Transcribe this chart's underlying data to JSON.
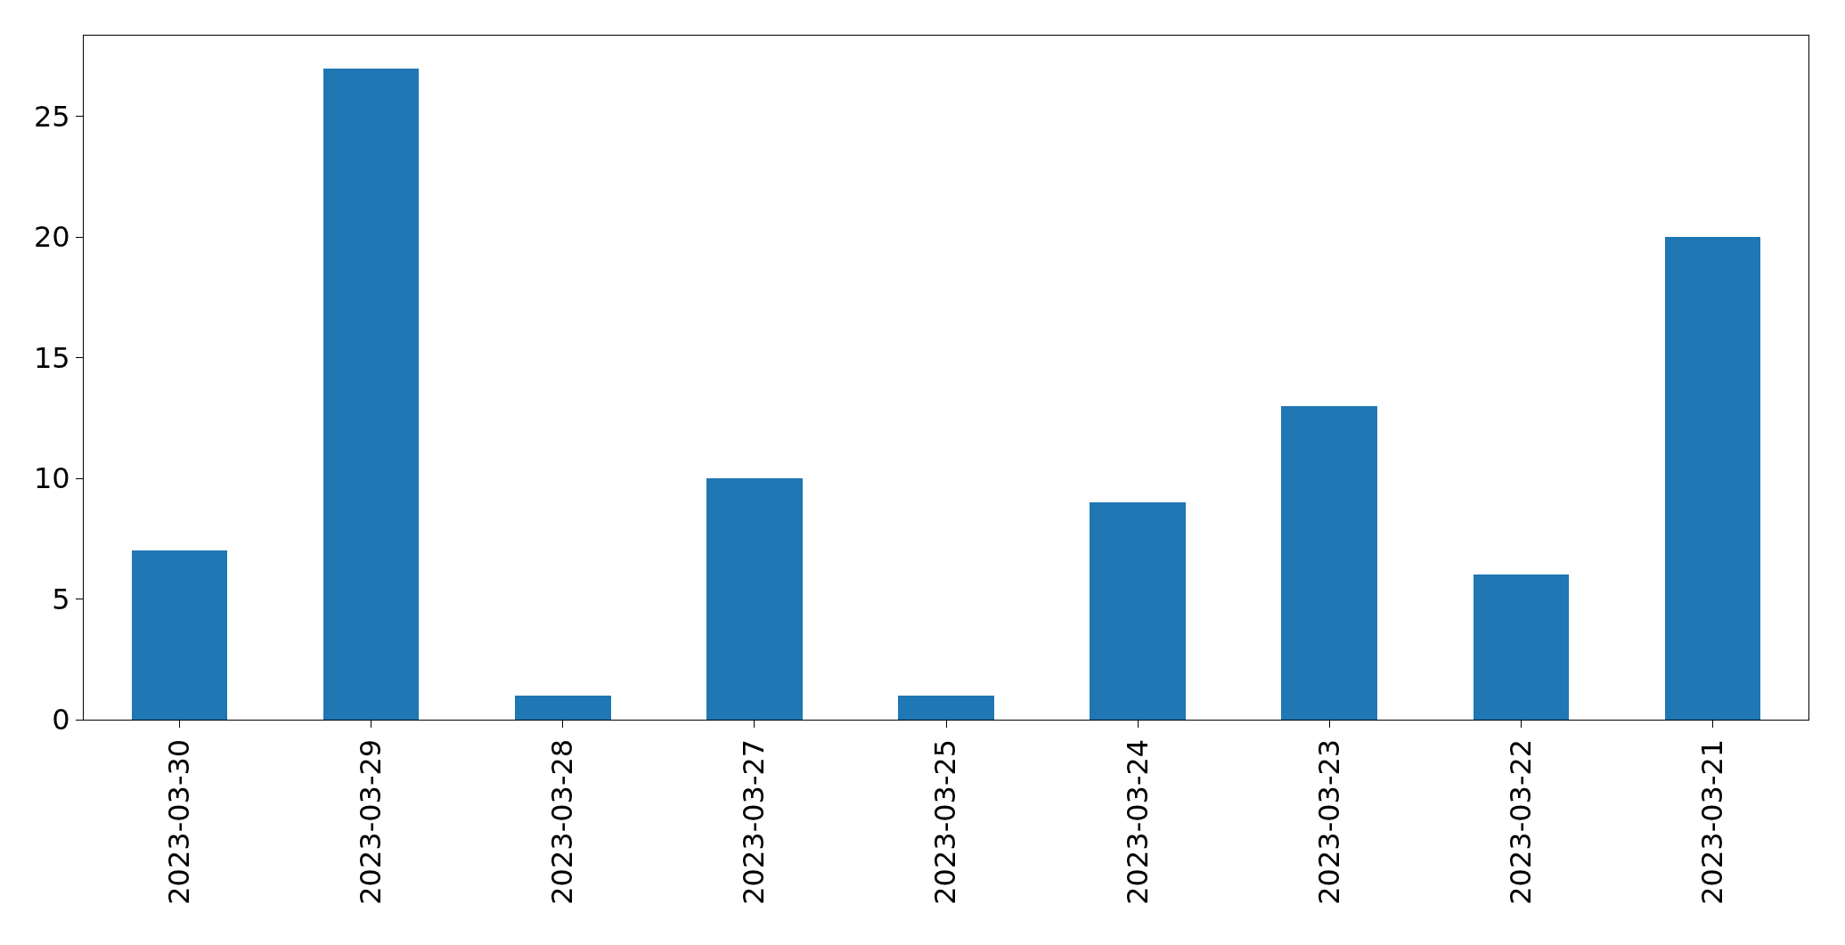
{
  "chart_data": {
    "type": "bar",
    "categories": [
      "2023-03-30",
      "2023-03-29",
      "2023-03-28",
      "2023-03-27",
      "2023-03-25",
      "2023-03-24",
      "2023-03-23",
      "2023-03-22",
      "2023-03-21"
    ],
    "values": [
      7,
      27,
      1,
      10,
      1,
      9,
      13,
      6,
      20
    ],
    "color": "#1f77b4",
    "ylim": [
      0,
      28.35
    ],
    "yticks": [
      0,
      5,
      10,
      15,
      20,
      25
    ]
  }
}
